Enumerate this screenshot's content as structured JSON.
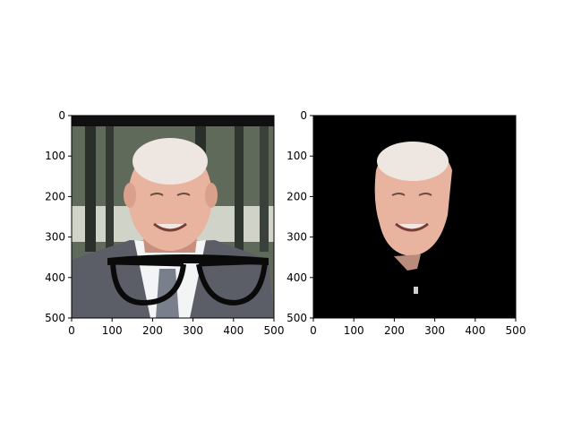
{
  "chart_data": [
    {
      "type": "image",
      "panel": "left",
      "content": "photo of an elderly man in a suit and tie with black eyeglasses overlaid",
      "xlim": [
        0,
        500
      ],
      "ylim": [
        500,
        0
      ],
      "xticks": [
        "0",
        "100",
        "200",
        "300",
        "400",
        "500"
      ],
      "yticks": [
        "0",
        "100",
        "200",
        "300",
        "400",
        "500"
      ],
      "grid": false
    },
    {
      "type": "image",
      "panel": "right",
      "content": "segmented face of the same man on a black background",
      "xlim": [
        0,
        500
      ],
      "ylim": [
        500,
        0
      ],
      "xticks": [
        "0",
        "100",
        "200",
        "300",
        "400",
        "500"
      ],
      "yticks": [
        "0",
        "100",
        "200",
        "300",
        "400",
        "500"
      ],
      "grid": false
    }
  ],
  "colors": {
    "face": "#e8b4a0",
    "skin_shadow": "#c98f7e",
    "hair": "#e9e4e0",
    "suit": "#5b5e66",
    "shirt": "#f2f4f6",
    "tie": "#7a7f8c",
    "glasses": "#0a0a0a",
    "background_photo": "#5e6b5a",
    "mask_background": "#000000"
  }
}
